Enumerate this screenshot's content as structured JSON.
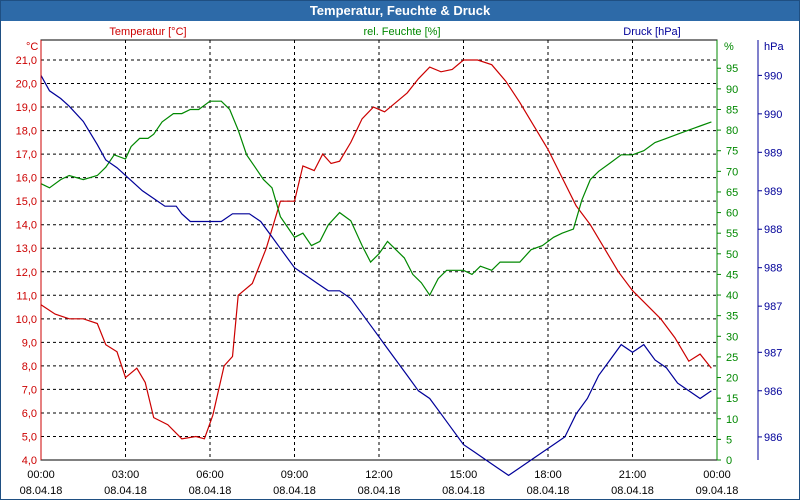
{
  "window": {
    "title": "Temperatur, Feuchte & Druck"
  },
  "chart_data": {
    "type": "line",
    "title": "Temperatur, Feuchte & Druck",
    "x_labels": [
      {
        "time": "00:00",
        "date": "08.04.18"
      },
      {
        "time": "03:00",
        "date": "08.04.18"
      },
      {
        "time": "06:00",
        "date": "08.04.18"
      },
      {
        "time": "09:00",
        "date": "08.04.18"
      },
      {
        "time": "12:00",
        "date": "08.04.18"
      },
      {
        "time": "15:00",
        "date": "08.04.18"
      },
      {
        "time": "18:00",
        "date": "08.04.18"
      },
      {
        "time": "21:00",
        "date": "08.04.18"
      },
      {
        "time": "00:00",
        "date": "09.04.18"
      }
    ],
    "x_range_hours": [
      0,
      24
    ],
    "axes": {
      "temperature": {
        "label": "Temperatur [°C]",
        "unit": "°C",
        "color": "#cc0000",
        "range": [
          4.0,
          21.0
        ],
        "ticks": [
          "4,0",
          "5,0",
          "6,0",
          "7,0",
          "8,0",
          "9,0",
          "10,0",
          "11,0",
          "12,0",
          "13,0",
          "14,0",
          "15,0",
          "16,0",
          "17,0",
          "18,0",
          "19,0",
          "20,0",
          "21,0"
        ]
      },
      "humidity": {
        "label": "rel. Feuchte [%]",
        "unit": "%",
        "color": "#008800",
        "range": [
          0,
          97
        ],
        "ticks": [
          "0",
          "5",
          "10",
          "15",
          "20",
          "25",
          "30",
          "35",
          "40",
          "45",
          "50",
          "55",
          "60",
          "65",
          "70",
          "75",
          "80",
          "85",
          "90",
          "95"
        ]
      },
      "pressure": {
        "label": "Druck [hPa]",
        "unit": "hPa",
        "color": "#000099",
        "range": [
          985.5,
          990.7
        ],
        "ticks": [
          {
            "label": "986",
            "value": 985.8
          },
          {
            "label": "986",
            "value": 986.4
          },
          {
            "label": "987",
            "value": 986.9
          },
          {
            "label": "987",
            "value": 987.5
          },
          {
            "label": "988",
            "value": 988.0
          },
          {
            "label": "988",
            "value": 988.5
          },
          {
            "label": "989",
            "value": 989.0
          },
          {
            "label": "989",
            "value": 989.5
          },
          {
            "label": "990",
            "value": 990.0
          },
          {
            "label": "990",
            "value": 990.5
          }
        ]
      }
    },
    "series": [
      {
        "name": "Temperatur",
        "axis": "temperature",
        "color": "#cc0000",
        "points": [
          [
            0,
            10.6
          ],
          [
            0.5,
            10.2
          ],
          [
            1,
            10.0
          ],
          [
            1.5,
            10.0
          ],
          [
            2,
            9.8
          ],
          [
            2.3,
            8.9
          ],
          [
            2.7,
            8.6
          ],
          [
            3,
            7.5
          ],
          [
            3.4,
            7.9
          ],
          [
            3.7,
            7.3
          ],
          [
            4,
            5.8
          ],
          [
            4.5,
            5.5
          ],
          [
            5,
            4.9
          ],
          [
            5.5,
            5.0
          ],
          [
            5.8,
            4.9
          ],
          [
            6.1,
            5.9
          ],
          [
            6.5,
            8.0
          ],
          [
            6.8,
            8.4
          ],
          [
            7,
            11.0
          ],
          [
            7.5,
            11.5
          ],
          [
            8,
            13.0
          ],
          [
            8.5,
            15.0
          ],
          [
            9,
            15.0
          ],
          [
            9.3,
            16.5
          ],
          [
            9.7,
            16.3
          ],
          [
            10,
            17.0
          ],
          [
            10.3,
            16.6
          ],
          [
            10.6,
            16.7
          ],
          [
            11,
            17.5
          ],
          [
            11.4,
            18.5
          ],
          [
            11.8,
            19.0
          ],
          [
            12.2,
            18.8
          ],
          [
            12.6,
            19.2
          ],
          [
            13,
            19.6
          ],
          [
            13.4,
            20.2
          ],
          [
            13.8,
            20.7
          ],
          [
            14.2,
            20.5
          ],
          [
            14.6,
            20.6
          ],
          [
            15,
            21.0
          ],
          [
            15.5,
            21.0
          ],
          [
            16,
            20.8
          ],
          [
            16.5,
            20.1
          ],
          [
            17,
            19.2
          ],
          [
            17.5,
            18.2
          ],
          [
            18,
            17.2
          ],
          [
            18.5,
            16.0
          ],
          [
            19,
            14.8
          ],
          [
            19.5,
            14.0
          ],
          [
            20,
            13.0
          ],
          [
            20.5,
            12.0
          ],
          [
            21,
            11.2
          ],
          [
            21.5,
            10.6
          ],
          [
            22,
            10.0
          ],
          [
            22.5,
            9.2
          ],
          [
            23,
            8.2
          ],
          [
            23.4,
            8.5
          ],
          [
            23.8,
            7.9
          ]
        ]
      },
      {
        "name": "rel. Feuchte",
        "axis": "humidity",
        "color": "#008800",
        "points": [
          [
            0,
            67
          ],
          [
            0.3,
            66
          ],
          [
            0.7,
            68
          ],
          [
            1,
            69
          ],
          [
            1.5,
            68
          ],
          [
            2,
            69
          ],
          [
            2.3,
            71
          ],
          [
            2.6,
            74
          ],
          [
            3,
            73
          ],
          [
            3.2,
            76
          ],
          [
            3.5,
            78
          ],
          [
            3.8,
            78
          ],
          [
            4,
            79
          ],
          [
            4.3,
            82
          ],
          [
            4.7,
            84
          ],
          [
            5,
            84
          ],
          [
            5.3,
            85
          ],
          [
            5.6,
            85
          ],
          [
            6,
            87
          ],
          [
            6.4,
            87
          ],
          [
            6.7,
            85
          ],
          [
            7,
            80
          ],
          [
            7.3,
            74
          ],
          [
            7.6,
            71
          ],
          [
            7.9,
            68
          ],
          [
            8.2,
            66
          ],
          [
            8.5,
            59
          ],
          [
            8.8,
            56
          ],
          [
            9,
            54
          ],
          [
            9.3,
            55
          ],
          [
            9.6,
            52
          ],
          [
            9.9,
            53
          ],
          [
            10.2,
            57
          ],
          [
            10.6,
            60
          ],
          [
            11,
            58
          ],
          [
            11.4,
            52
          ],
          [
            11.7,
            48
          ],
          [
            12,
            50
          ],
          [
            12.3,
            53
          ],
          [
            12.6,
            51
          ],
          [
            12.9,
            49
          ],
          [
            13.2,
            45
          ],
          [
            13.5,
            43
          ],
          [
            13.8,
            40
          ],
          [
            14.1,
            44
          ],
          [
            14.4,
            46
          ],
          [
            14.7,
            46
          ],
          [
            15,
            46
          ],
          [
            15.3,
            45
          ],
          [
            15.6,
            47
          ],
          [
            16,
            46
          ],
          [
            16.3,
            48
          ],
          [
            16.6,
            48
          ],
          [
            17,
            48
          ],
          [
            17.4,
            51
          ],
          [
            17.8,
            52
          ],
          [
            18.2,
            54
          ],
          [
            18.5,
            55
          ],
          [
            18.9,
            56
          ],
          [
            19.2,
            63
          ],
          [
            19.5,
            68
          ],
          [
            19.8,
            70
          ],
          [
            20.2,
            72
          ],
          [
            20.6,
            74
          ],
          [
            21,
            74
          ],
          [
            21.4,
            75
          ],
          [
            21.8,
            77
          ],
          [
            22.2,
            78
          ],
          [
            22.6,
            79
          ],
          [
            23,
            80
          ],
          [
            23.4,
            81
          ],
          [
            23.8,
            82
          ]
        ]
      },
      {
        "name": "Druck",
        "axis": "pressure",
        "color": "#000099",
        "points": [
          [
            0,
            990.5
          ],
          [
            0.3,
            990.3
          ],
          [
            0.7,
            990.2
          ],
          [
            1,
            990.1
          ],
          [
            1.5,
            989.9
          ],
          [
            2,
            989.6
          ],
          [
            2.3,
            989.4
          ],
          [
            2.7,
            989.3
          ],
          [
            3,
            989.2
          ],
          [
            3.3,
            989.1
          ],
          [
            3.6,
            989.0
          ],
          [
            4,
            988.9
          ],
          [
            4.4,
            988.8
          ],
          [
            4.8,
            988.8
          ],
          [
            5,
            988.7
          ],
          [
            5.3,
            988.6
          ],
          [
            5.6,
            988.6
          ],
          [
            6,
            988.6
          ],
          [
            6.4,
            988.6
          ],
          [
            6.8,
            988.7
          ],
          [
            7,
            988.7
          ],
          [
            7.4,
            988.7
          ],
          [
            7.8,
            988.6
          ],
          [
            8.2,
            988.4
          ],
          [
            8.6,
            988.2
          ],
          [
            9,
            988.0
          ],
          [
            9.4,
            987.9
          ],
          [
            9.8,
            987.8
          ],
          [
            10.2,
            987.7
          ],
          [
            10.6,
            987.7
          ],
          [
            11,
            987.6
          ],
          [
            11.4,
            987.4
          ],
          [
            11.8,
            987.2
          ],
          [
            12.2,
            987.0
          ],
          [
            12.6,
            986.8
          ],
          [
            13,
            986.6
          ],
          [
            13.4,
            986.4
          ],
          [
            13.8,
            986.3
          ],
          [
            14.2,
            986.1
          ],
          [
            14.6,
            985.9
          ],
          [
            15,
            985.7
          ],
          [
            15.4,
            985.6
          ],
          [
            15.8,
            985.5
          ],
          [
            16.2,
            985.4
          ],
          [
            16.6,
            985.3
          ],
          [
            17,
            985.4
          ],
          [
            17.4,
            985.5
          ],
          [
            17.8,
            985.6
          ],
          [
            18.2,
            985.7
          ],
          [
            18.6,
            985.8
          ],
          [
            19,
            986.1
          ],
          [
            19.4,
            986.3
          ],
          [
            19.8,
            986.6
          ],
          [
            20.2,
            986.8
          ],
          [
            20.6,
            987.0
          ],
          [
            21,
            986.9
          ],
          [
            21.4,
            987.0
          ],
          [
            21.8,
            986.8
          ],
          [
            22.2,
            986.7
          ],
          [
            22.6,
            986.5
          ],
          [
            23,
            986.4
          ],
          [
            23.4,
            986.3
          ],
          [
            23.8,
            986.4
          ]
        ]
      }
    ]
  }
}
